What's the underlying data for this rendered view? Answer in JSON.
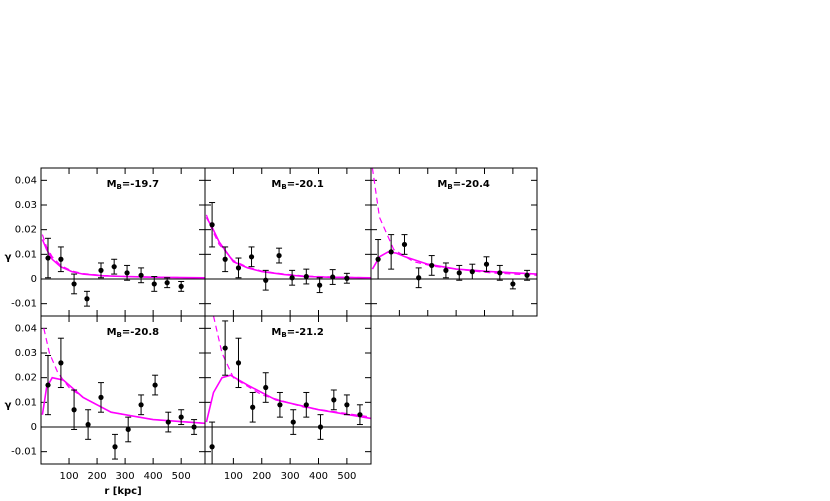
{
  "chart_data": [
    {
      "type": "errorbar",
      "title_parts": [
        "M",
        "B",
        "=-19.7"
      ],
      "ylabel": "γ",
      "x": [
        25,
        71,
        118,
        164,
        214,
        261,
        307,
        357,
        404,
        450,
        500
      ],
      "values": [
        0.0085,
        0.008,
        -0.002,
        -0.008,
        0.0035,
        0.005,
        0.0025,
        0.0015,
        -0.002,
        -0.0015,
        -0.003
      ],
      "errors": [
        0.008,
        0.005,
        0.004,
        0.003,
        0.003,
        0.003,
        0.003,
        0.003,
        0.003,
        0.002,
        0.002
      ],
      "color": "#000000",
      "curves": [
        {
          "style": "solid",
          "color": "#ff00ff",
          "x": [
            5,
            20,
            40,
            70,
            110,
            150,
            220,
            300,
            420,
            585
          ],
          "values": [
            0.016,
            0.012,
            0.008,
            0.005,
            0.003,
            0.002,
            0.0013,
            0.001,
            0.0007,
            0.0005
          ]
        },
        {
          "style": "dashed",
          "color": "#ff00ff",
          "x": [
            5,
            20,
            40,
            70,
            110,
            150,
            220,
            300,
            420,
            585
          ],
          "values": [
            0.018,
            0.013,
            0.009,
            0.0055,
            0.0033,
            0.0022,
            0.0014,
            0.001,
            0.0007,
            0.0005
          ]
        }
      ],
      "xlim": [
        0,
        585
      ],
      "ylim": [
        -0.015,
        0.045
      ],
      "xticks": [
        100,
        200,
        300,
        400,
        500
      ],
      "yticks": [
        -0.01,
        0,
        0.01,
        0.02,
        0.03,
        0.04
      ],
      "xtick_labels": false,
      "ytick_labels": true
    },
    {
      "type": "errorbar",
      "title_parts": [
        "M",
        "B",
        "=-20.1"
      ],
      "x": [
        25,
        71,
        118,
        164,
        214,
        261,
        307,
        357,
        404,
        450,
        500
      ],
      "values": [
        0.022,
        0.008,
        0.0045,
        0.009,
        -0.0005,
        0.0095,
        0.0005,
        0.001,
        -0.0025,
        0.0008,
        0.0003
      ],
      "errors": [
        0.009,
        0.005,
        0.004,
        0.004,
        0.004,
        0.003,
        0.003,
        0.003,
        0.003,
        0.003,
        0.002
      ],
      "color": "#000000",
      "curves": [
        {
          "style": "solid",
          "color": "#ff00ff",
          "x": [
            5,
            25,
            50,
            100,
            150,
            200,
            280,
            350,
            450,
            585
          ],
          "values": [
            0.025,
            0.021,
            0.015,
            0.007,
            0.0045,
            0.003,
            0.0018,
            0.001,
            0.0007,
            0.0005
          ]
        },
        {
          "style": "dashed",
          "color": "#ff00ff",
          "x": [
            5,
            25,
            50,
            100,
            150,
            200,
            280,
            350,
            450,
            585
          ],
          "values": [
            0.026,
            0.02,
            0.014,
            0.0075,
            0.0048,
            0.0032,
            0.002,
            0.0012,
            0.0008,
            0.0005
          ]
        }
      ],
      "xlim": [
        0,
        585
      ],
      "ylim": [
        -0.015,
        0.045
      ],
      "xticks": [
        100,
        200,
        300,
        400,
        500
      ],
      "yticks": [
        -0.01,
        0,
        0.01,
        0.02,
        0.03,
        0.04
      ],
      "xtick_labels": false,
      "ytick_labels": false
    },
    {
      "type": "errorbar",
      "title_parts": [
        "M",
        "B",
        "=-20.4"
      ],
      "x": [
        25,
        71,
        118,
        168,
        214,
        264,
        311,
        357,
        407,
        454,
        500,
        550
      ],
      "values": [
        0.008,
        0.011,
        0.014,
        0.0005,
        0.0055,
        0.0035,
        0.0025,
        0.003,
        0.006,
        0.0025,
        -0.002,
        0.0015
      ],
      "errors": [
        0.008,
        0.007,
        0.004,
        0.004,
        0.004,
        0.003,
        0.003,
        0.003,
        0.003,
        0.003,
        0.002,
        0.002
      ],
      "color": "#000000",
      "curves": [
        {
          "style": "solid",
          "color": "#ff00ff",
          "x": [
            5,
            30,
            60,
            90,
            120,
            200,
            300,
            420,
            585
          ],
          "values": [
            0.004,
            0.009,
            0.011,
            0.0105,
            0.009,
            0.006,
            0.004,
            0.003,
            0.002
          ]
        },
        {
          "style": "dashed",
          "color": "#ff00ff",
          "x": [
            5,
            30,
            80,
            150,
            220,
            300,
            420,
            585
          ],
          "values": [
            0.045,
            0.025,
            0.012,
            0.007,
            0.0052,
            0.004,
            0.0025,
            0.0015
          ]
        }
      ],
      "xlim": [
        0,
        585
      ],
      "ylim": [
        -0.015,
        0.045
      ],
      "xticks": [
        100,
        200,
        300,
        400,
        500
      ],
      "yticks": [
        -0.01,
        0,
        0.01,
        0.02,
        0.03,
        0.04
      ],
      "xtick_labels": false,
      "ytick_labels": false
    },
    {
      "type": "errorbar",
      "title_parts": [
        "M",
        "B",
        "=-20.8"
      ],
      "ylabel": "γ",
      "xlabel": "r [kpc]",
      "x": [
        25,
        71,
        118,
        168,
        214,
        264,
        311,
        357,
        407,
        454,
        500,
        546
      ],
      "values": [
        0.017,
        0.026,
        0.007,
        0.001,
        0.012,
        -0.008,
        -0.001,
        0.009,
        0.017,
        0.002,
        0.004,
        0.0
      ],
      "errors": [
        0.012,
        0.01,
        0.008,
        0.006,
        0.006,
        0.005,
        0.005,
        0.004,
        0.004,
        0.004,
        0.003,
        0.003
      ],
      "color": "#000000",
      "curves": [
        {
          "style": "solid",
          "color": "#ff00ff",
          "x": [
            5,
            20,
            40,
            80,
            150,
            250,
            400,
            585
          ],
          "values": [
            0.005,
            0.016,
            0.02,
            0.019,
            0.012,
            0.006,
            0.003,
            0.0015
          ]
        },
        {
          "style": "dashed",
          "color": "#ff00ff",
          "x": [
            10,
            30,
            60,
            100,
            150,
            250,
            400,
            585
          ],
          "values": [
            0.04,
            0.03,
            0.022,
            0.016,
            0.012,
            0.006,
            0.003,
            0.0015
          ]
        }
      ],
      "xlim": [
        0,
        585
      ],
      "ylim": [
        -0.015,
        0.045
      ],
      "xticks": [
        100,
        200,
        300,
        400,
        500
      ],
      "yticks": [
        -0.01,
        0,
        0.01,
        0.02,
        0.03,
        0.04
      ],
      "xtick_labels": true,
      "ytick_labels": true
    },
    {
      "type": "errorbar",
      "title_parts": [
        "M",
        "B",
        "=-21.2"
      ],
      "x": [
        25,
        71,
        118,
        168,
        214,
        264,
        311,
        357,
        407,
        454,
        500,
        546
      ],
      "values": [
        -0.008,
        0.032,
        0.026,
        0.008,
        0.016,
        0.009,
        0.002,
        0.009,
        0.0,
        0.011,
        0.009,
        0.005
      ],
      "errors": [
        0.01,
        0.011,
        0.01,
        0.006,
        0.006,
        0.005,
        0.005,
        0.005,
        0.005,
        0.004,
        0.004,
        0.004
      ],
      "color": "#000000",
      "curves": [
        {
          "style": "solid",
          "color": "#ff00ff",
          "x": [
            5,
            30,
            60,
            90,
            150,
            250,
            400,
            585
          ],
          "values": [
            0.002,
            0.014,
            0.02,
            0.021,
            0.017,
            0.011,
            0.007,
            0.0035
          ]
        },
        {
          "style": "dashed",
          "color": "#ff00ff",
          "x": [
            30,
            60,
            100,
            200,
            350,
            585
          ],
          "values": [
            0.045,
            0.03,
            0.02,
            0.013,
            0.008,
            0.004
          ]
        }
      ],
      "xlim": [
        0,
        585
      ],
      "ylim": [
        -0.015,
        0.045
      ],
      "xticks": [
        100,
        200,
        300,
        400,
        500
      ],
      "yticks": [
        -0.01,
        0,
        0.01,
        0.02,
        0.03,
        0.04
      ],
      "xtick_labels": true,
      "ytick_labels": false
    }
  ]
}
